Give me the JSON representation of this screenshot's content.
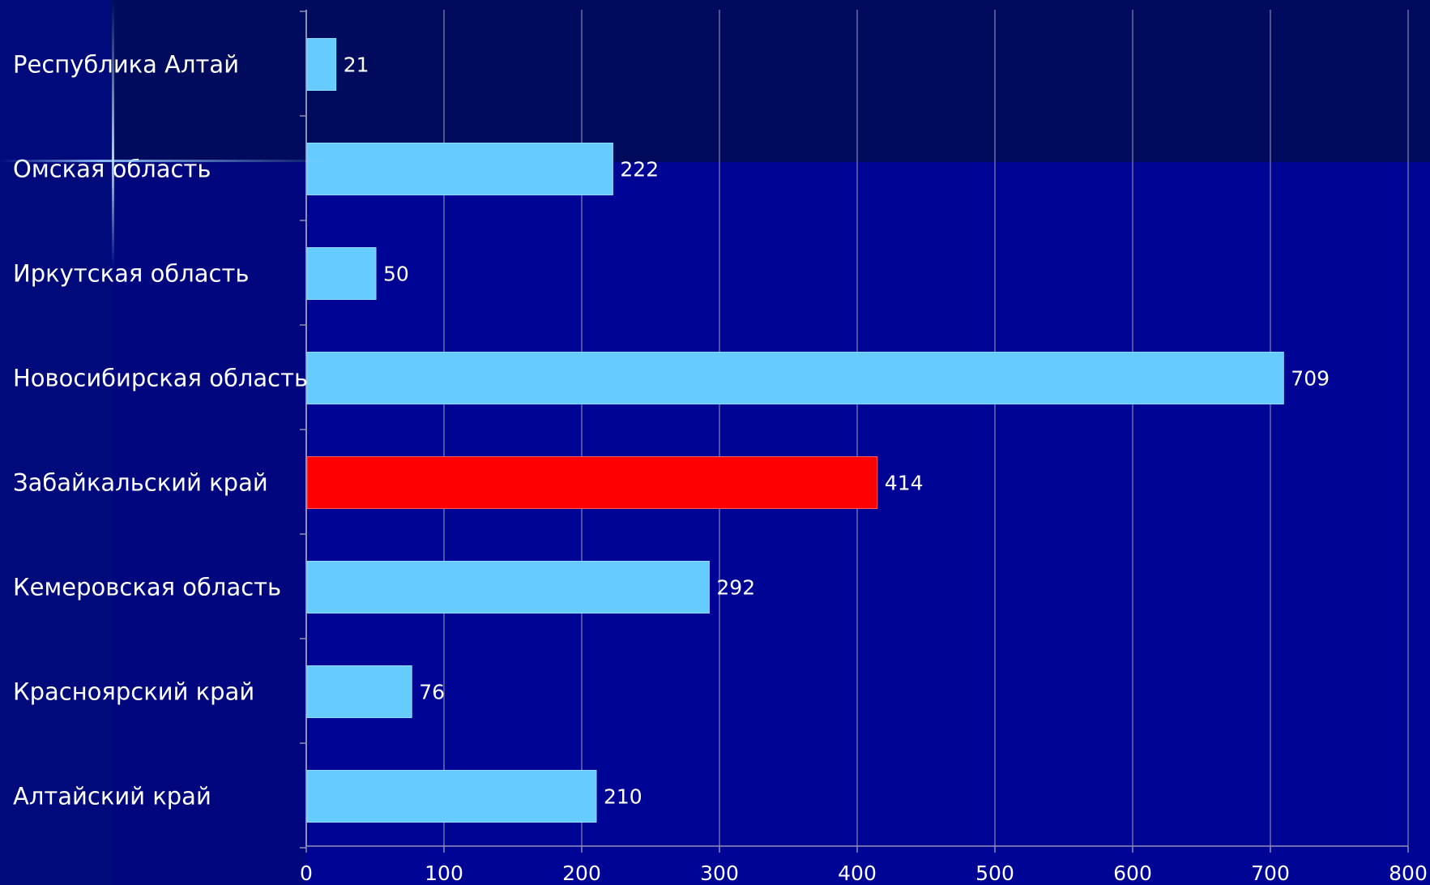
{
  "chart_data": {
    "type": "bar",
    "orientation": "horizontal",
    "categories": [
      "Республика Алтай",
      "Омская область",
      "Иркутская область",
      "Новосибирская область",
      "Забайкальский край",
      "Кемеровская область",
      "Красноярский край",
      "Алтайский край"
    ],
    "values": [
      21,
      222,
      50,
      709,
      414,
      292,
      76,
      210
    ],
    "highlight_category": "Забайкальский край",
    "xlim": [
      0,
      800
    ],
    "x_ticks": [
      0,
      100,
      200,
      300,
      400,
      500,
      600,
      700,
      800
    ],
    "grid": "vertical",
    "legend": "none",
    "title": "",
    "xlabel": "",
    "ylabel": "",
    "colors": {
      "bar": "#66ccff",
      "bar_highlight": "#ff0000",
      "background": "#00008a",
      "grid": "#8f8fb8",
      "text": "#ffffff"
    }
  }
}
